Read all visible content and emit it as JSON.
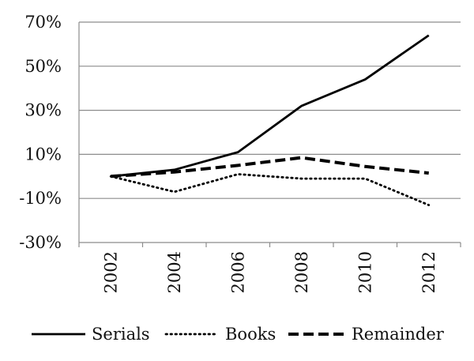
{
  "chart_data": {
    "type": "line",
    "x": [
      2002,
      2004,
      2006,
      2008,
      2010,
      2012
    ],
    "x_tick_labels": [
      "2002",
      "2004",
      "2006",
      "2008",
      "2010",
      "2012"
    ],
    "y_tick_labels": [
      "70%",
      "50%",
      "30%",
      "10%",
      "-10%",
      "-30%"
    ],
    "y_ticks": [
      70,
      50,
      30,
      10,
      -10,
      -30
    ],
    "ylim": [
      -30,
      70
    ],
    "grid": "horizontal",
    "legend_position": "bottom",
    "series": [
      {
        "name": "Serials",
        "values": [
          0,
          3,
          11,
          32,
          44,
          64
        ],
        "style": "solid"
      },
      {
        "name": "Books",
        "values": [
          0,
          -7,
          1,
          -1,
          -1,
          -13
        ],
        "style": "dotted"
      },
      {
        "name": "Remainder",
        "values": [
          0,
          2,
          5,
          8.5,
          4.5,
          1.5
        ],
        "style": "dashed"
      }
    ],
    "colors": {
      "lines": "#000000",
      "grid": "#8c8c8c",
      "axis": "#8c8c8c"
    }
  }
}
